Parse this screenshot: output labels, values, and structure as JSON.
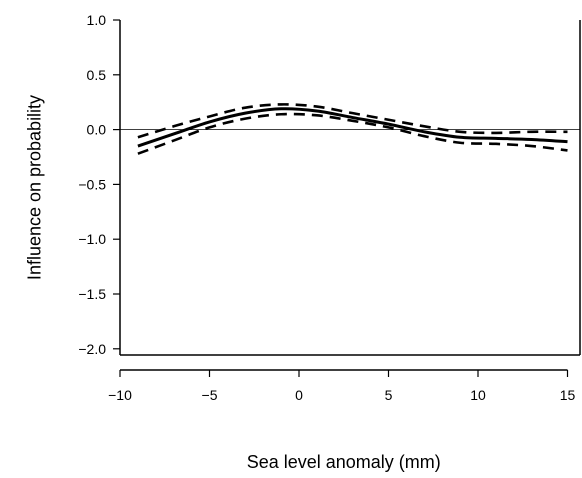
{
  "chart_data": {
    "type": "line",
    "title": "",
    "xlabel": "Sea level anomaly (mm)",
    "ylabel": "Influence on probability",
    "xlim": [
      -10,
      15
    ],
    "ylim": [
      -2.0,
      1.0
    ],
    "xticks": [
      -10,
      -5,
      0,
      5,
      10,
      15
    ],
    "xtick_labels": [
      "−10",
      "−5",
      "0",
      "5",
      "10",
      "15"
    ],
    "yticks": [
      1.0,
      0.5,
      0.0,
      -0.5,
      -1.0,
      -1.5,
      -2.0
    ],
    "ytick_labels": [
      "1.0",
      "0.5",
      "0.0",
      "−0.5",
      "−1.0",
      "−1.5",
      "−2.0"
    ],
    "reference_line": {
      "y": 0,
      "style": "solid-thin"
    },
    "grid": false,
    "legend": "none",
    "series": [
      {
        "role": "fit",
        "style": "solid",
        "x": [
          -9,
          -7,
          -5,
          -3,
          -1,
          1,
          3,
          5,
          7,
          9,
          11,
          13,
          15
        ],
        "y": [
          -0.15,
          -0.04,
          0.07,
          0.15,
          0.19,
          0.17,
          0.11,
          0.05,
          -0.02,
          -0.07,
          -0.08,
          -0.09,
          -0.11
        ]
      },
      {
        "role": "upper-bound",
        "style": "dashed",
        "x": [
          -9,
          -7,
          -5,
          -3,
          -1,
          1,
          3,
          5,
          7,
          9,
          11,
          13,
          15
        ],
        "y": [
          -0.07,
          0.03,
          0.12,
          0.2,
          0.23,
          0.21,
          0.15,
          0.09,
          0.03,
          -0.02,
          -0.03,
          -0.02,
          -0.02
        ]
      },
      {
        "role": "lower-bound",
        "style": "dashed",
        "x": [
          -9,
          -7,
          -5,
          -3,
          -1,
          1,
          3,
          5,
          7,
          9,
          11,
          13,
          15
        ],
        "y": [
          -0.22,
          -0.1,
          0.02,
          0.1,
          0.14,
          0.13,
          0.08,
          0.02,
          -0.06,
          -0.12,
          -0.13,
          -0.15,
          -0.19
        ]
      }
    ]
  }
}
